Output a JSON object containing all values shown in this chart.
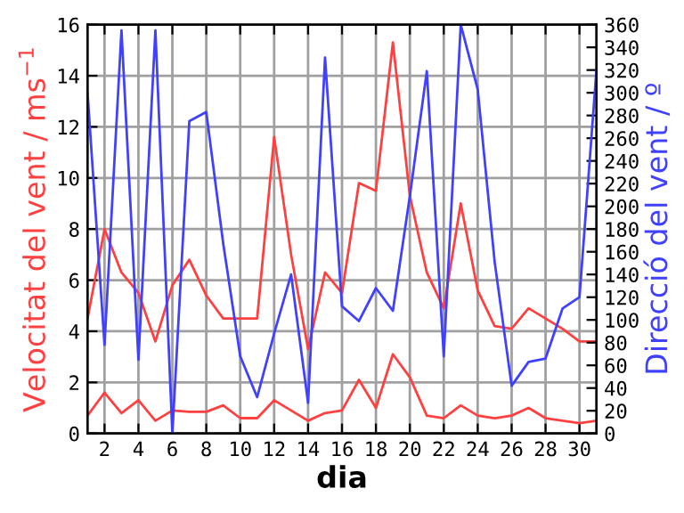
{
  "chart_data": {
    "type": "line",
    "xlabel": "dia",
    "ylabel": "Velocitat del vent / ms$^{−1}$",
    "y2label": "Direcció del vent / º",
    "x": [
      1,
      2,
      3,
      4,
      5,
      6,
      7,
      8,
      9,
      10,
      11,
      12,
      13,
      14,
      15,
      16,
      17,
      18,
      19,
      20,
      21,
      22,
      23,
      24,
      25,
      26,
      27,
      28,
      29,
      30,
      31
    ],
    "series": [
      {
        "color": "#ff4040",
        "values": [
          4.5,
          8.0,
          6.3,
          5.5,
          3.6,
          5.8,
          6.8,
          5.4,
          4.5,
          4.5,
          4.5,
          11.6,
          7.0,
          3.3,
          6.3,
          5.5,
          9.8,
          9.5,
          15.3,
          9.3,
          6.3,
          4.9,
          9.0,
          5.6,
          4.2,
          4.1,
          4.9,
          4.5,
          4.1,
          3.6,
          3.6
        ]
      },
      {
        "color": "#ff4040",
        "values": [
          0.7,
          1.6,
          0.8,
          1.3,
          0.5,
          0.9,
          0.85,
          0.85,
          1.1,
          0.6,
          0.6,
          1.3,
          0.9,
          0.5,
          0.8,
          0.9,
          2.1,
          1.0,
          3.1,
          2.2,
          0.7,
          0.6,
          1.1,
          0.7,
          0.6,
          0.7,
          1.0,
          0.6,
          0.5,
          0.4,
          0.5
        ]
      },
      {
        "color": "#4040ff",
        "axis": "y2",
        "values": [
          300,
          78,
          355,
          65,
          355,
          0,
          275,
          283,
          167,
          68,
          32,
          88,
          140,
          27,
          331,
          112,
          99,
          128,
          108,
          209,
          319,
          68,
          360,
          303,
          151,
          42,
          63,
          66,
          110,
          120,
          320
        ]
      }
    ],
    "xlim": [
      1,
      31
    ],
    "xticks": [
      2,
      4,
      6,
      8,
      10,
      12,
      14,
      16,
      18,
      20,
      22,
      24,
      26,
      28,
      30
    ],
    "ylim": [
      0,
      16
    ],
    "yticks": [
      0,
      2,
      4,
      6,
      8,
      10,
      12,
      14,
      16
    ],
    "y2lim": [
      0,
      360
    ],
    "y2ticks": [
      0,
      20,
      40,
      60,
      80,
      100,
      120,
      140,
      160,
      180,
      200,
      220,
      240,
      260,
      280,
      300,
      320,
      340,
      360
    ],
    "grid": true,
    "marker": "none",
    "line_style": "solid"
  }
}
